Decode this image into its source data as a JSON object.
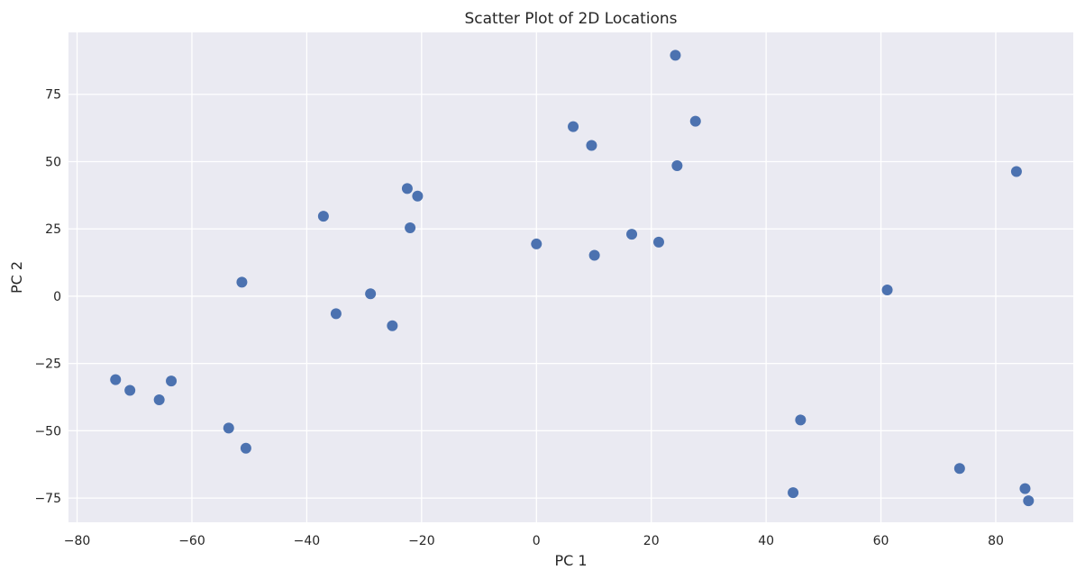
{
  "chart_data": {
    "type": "scatter",
    "title": "Scatter Plot of 2D Locations",
    "xlabel": "PC 1",
    "ylabel": "PC 2",
    "xlim": [
      -81.5,
      93.5
    ],
    "ylim": [
      -84,
      98
    ],
    "xticks": [
      -80,
      -60,
      -40,
      -20,
      0,
      20,
      40,
      60,
      80
    ],
    "yticks": [
      -75,
      -50,
      -25,
      0,
      25,
      50,
      75
    ],
    "xtick_labels": [
      "−80",
      "−60",
      "−40",
      "−20",
      "0",
      "20",
      "40",
      "60",
      "80"
    ],
    "ytick_labels": [
      "−75",
      "−50",
      "−25",
      "0",
      "25",
      "50",
      "75"
    ],
    "grid": true,
    "background_color": "#eaeaf2",
    "grid_color": "#ffffff",
    "point_color": "#4c72b0",
    "points": [
      {
        "x": 24.2,
        "y": 89.5
      },
      {
        "x": 27.7,
        "y": 65.0
      },
      {
        "x": 6.4,
        "y": 63.0
      },
      {
        "x": 9.6,
        "y": 56.0
      },
      {
        "x": 24.5,
        "y": 48.5
      },
      {
        "x": 83.6,
        "y": 46.3
      },
      {
        "x": -22.5,
        "y": 40.0
      },
      {
        "x": -20.7,
        "y": 37.2
      },
      {
        "x": -37.1,
        "y": 29.7
      },
      {
        "x": -22.0,
        "y": 25.4
      },
      {
        "x": 16.6,
        "y": 23.0
      },
      {
        "x": 21.3,
        "y": 20.1
      },
      {
        "x": 0.0,
        "y": 19.4
      },
      {
        "x": 10.1,
        "y": 15.2
      },
      {
        "x": -51.3,
        "y": 5.2
      },
      {
        "x": -28.9,
        "y": 0.9
      },
      {
        "x": 61.1,
        "y": 2.3
      },
      {
        "x": -34.9,
        "y": -6.5
      },
      {
        "x": -25.1,
        "y": -11.0
      },
      {
        "x": -73.3,
        "y": -31.0
      },
      {
        "x": -63.6,
        "y": -31.5
      },
      {
        "x": -70.8,
        "y": -35.0
      },
      {
        "x": -65.7,
        "y": -38.5
      },
      {
        "x": -53.6,
        "y": -49.0
      },
      {
        "x": -50.6,
        "y": -56.5
      },
      {
        "x": 46.0,
        "y": -46.0
      },
      {
        "x": 73.7,
        "y": -64.0
      },
      {
        "x": 44.7,
        "y": -73.0
      },
      {
        "x": 85.1,
        "y": -71.5
      },
      {
        "x": 85.7,
        "y": -76.0
      }
    ]
  }
}
